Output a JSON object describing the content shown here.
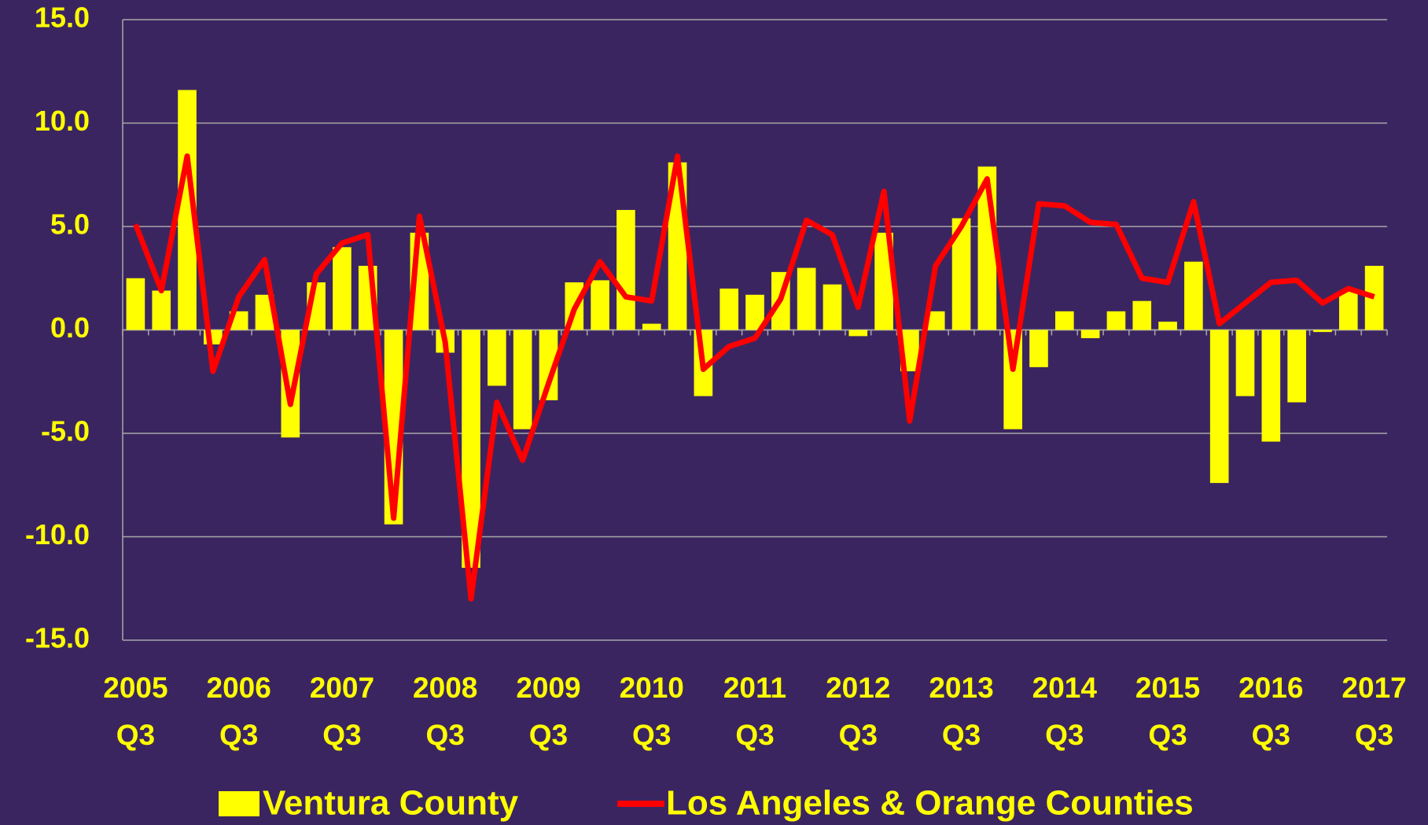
{
  "chart_data": {
    "type": "bar_line",
    "categories": [
      "2005 Q3",
      null,
      null,
      null,
      "2006 Q3",
      null,
      null,
      null,
      "2007 Q3",
      null,
      null,
      null,
      "2008 Q3",
      null,
      null,
      null,
      "2009 Q3",
      null,
      null,
      null,
      "2010 Q3",
      null,
      null,
      null,
      "2011 Q3",
      null,
      null,
      null,
      "2012 Q3",
      null,
      null,
      null,
      "2013 Q3",
      null,
      null,
      null,
      "2014 Q3",
      null,
      null,
      null,
      "2015 Q3",
      null,
      null,
      null,
      "2016 Q3",
      null,
      null,
      null,
      "2017 Q3"
    ],
    "series": [
      {
        "name": "Ventura County",
        "type": "bar",
        "color": "#ffff00",
        "values": [
          2.5,
          1.9,
          11.6,
          -0.7,
          0.9,
          1.7,
          -5.2,
          2.3,
          4.0,
          3.1,
          -9.4,
          4.7,
          -1.1,
          -11.5,
          -2.7,
          -4.8,
          -3.4,
          2.3,
          2.4,
          5.8,
          0.3,
          8.1,
          -3.2,
          2.0,
          1.7,
          2.8,
          3.0,
          2.2,
          -0.3,
          4.7,
          -2.0,
          0.9,
          5.4,
          7.9,
          -4.8,
          -1.8,
          0.9,
          -0.4,
          0.9,
          1.4,
          0.4,
          3.3,
          -7.4,
          -3.2,
          -5.4,
          -3.5,
          -0.1,
          1.9,
          3.1
        ]
      },
      {
        "name": "Los Angeles & Orange Counties",
        "type": "line",
        "color": "#ff0000",
        "values": [
          5.1,
          1.9,
          8.4,
          -2.0,
          1.6,
          3.4,
          -3.6,
          2.7,
          4.2,
          4.6,
          -9.1,
          5.5,
          -0.6,
          -13.0,
          -3.5,
          -6.3,
          -2.6,
          1.0,
          3.3,
          1.6,
          1.4,
          8.4,
          -1.9,
          -0.8,
          -0.4,
          1.5,
          5.3,
          4.6,
          1.1,
          6.7,
          -4.4,
          3.1,
          5.0,
          7.3,
          -1.9,
          6.1,
          6.0,
          5.2,
          5.1,
          2.5,
          2.3,
          6.2,
          0.3,
          1.3,
          2.3,
          2.4,
          1.3,
          2.0,
          1.6
        ]
      }
    ],
    "ylim": [
      -15,
      15
    ],
    "yticks": [
      {
        "value": -15,
        "label": "-15.0"
      },
      {
        "value": -10,
        "label": "-10.0"
      },
      {
        "value": -5,
        "label": "-5.0"
      },
      {
        "value": 0,
        "label": "0.0"
      },
      {
        "value": 5,
        "label": "5.0"
      },
      {
        "value": 10,
        "label": "10.0"
      },
      {
        "value": 15,
        "label": "15.0"
      }
    ],
    "grid": true,
    "legend": "bottom"
  }
}
